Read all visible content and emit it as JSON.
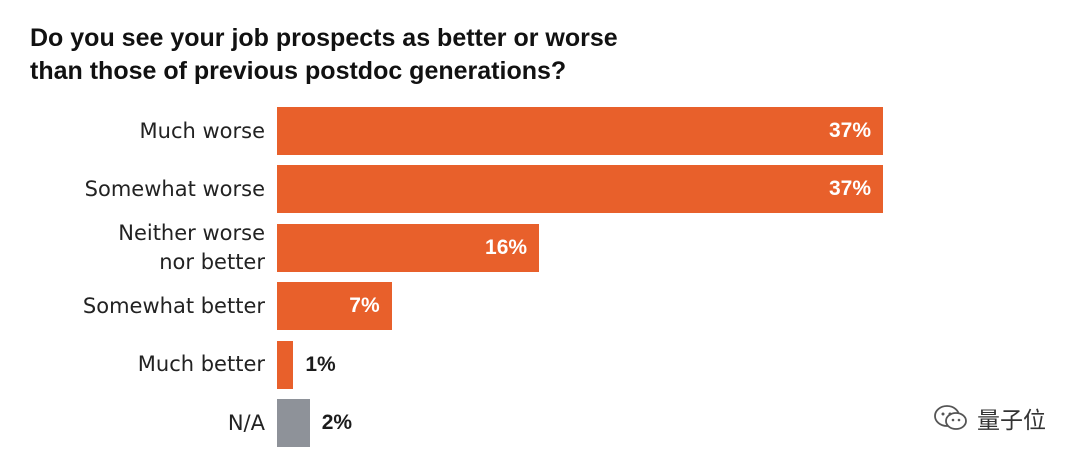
{
  "title_lines": [
    "Do you see your job prospects as better or worse",
    "than those of previous postdoc generations?"
  ],
  "chart_data": {
    "type": "bar",
    "orientation": "horizontal",
    "categories": [
      [
        "Much worse"
      ],
      [
        "Somewhat worse"
      ],
      [
        "Neither worse",
        "nor better"
      ],
      [
        "Somewhat better"
      ],
      [
        "Much better"
      ],
      [
        "N/A"
      ]
    ],
    "values": [
      37,
      37,
      16,
      7,
      1,
      2
    ],
    "value_labels": [
      "37%",
      "37%",
      "16%",
      "7%",
      "1%",
      "2%"
    ],
    "bar_colors": [
      "#e8602b",
      "#e8602b",
      "#e8602b",
      "#e8602b",
      "#e8602b",
      "#8e9299"
    ],
    "unit": "%",
    "xlim": [
      0,
      37
    ],
    "grid": false,
    "legend": "none"
  },
  "watermark": {
    "text": "量子位",
    "icon": "wechat-icon"
  }
}
